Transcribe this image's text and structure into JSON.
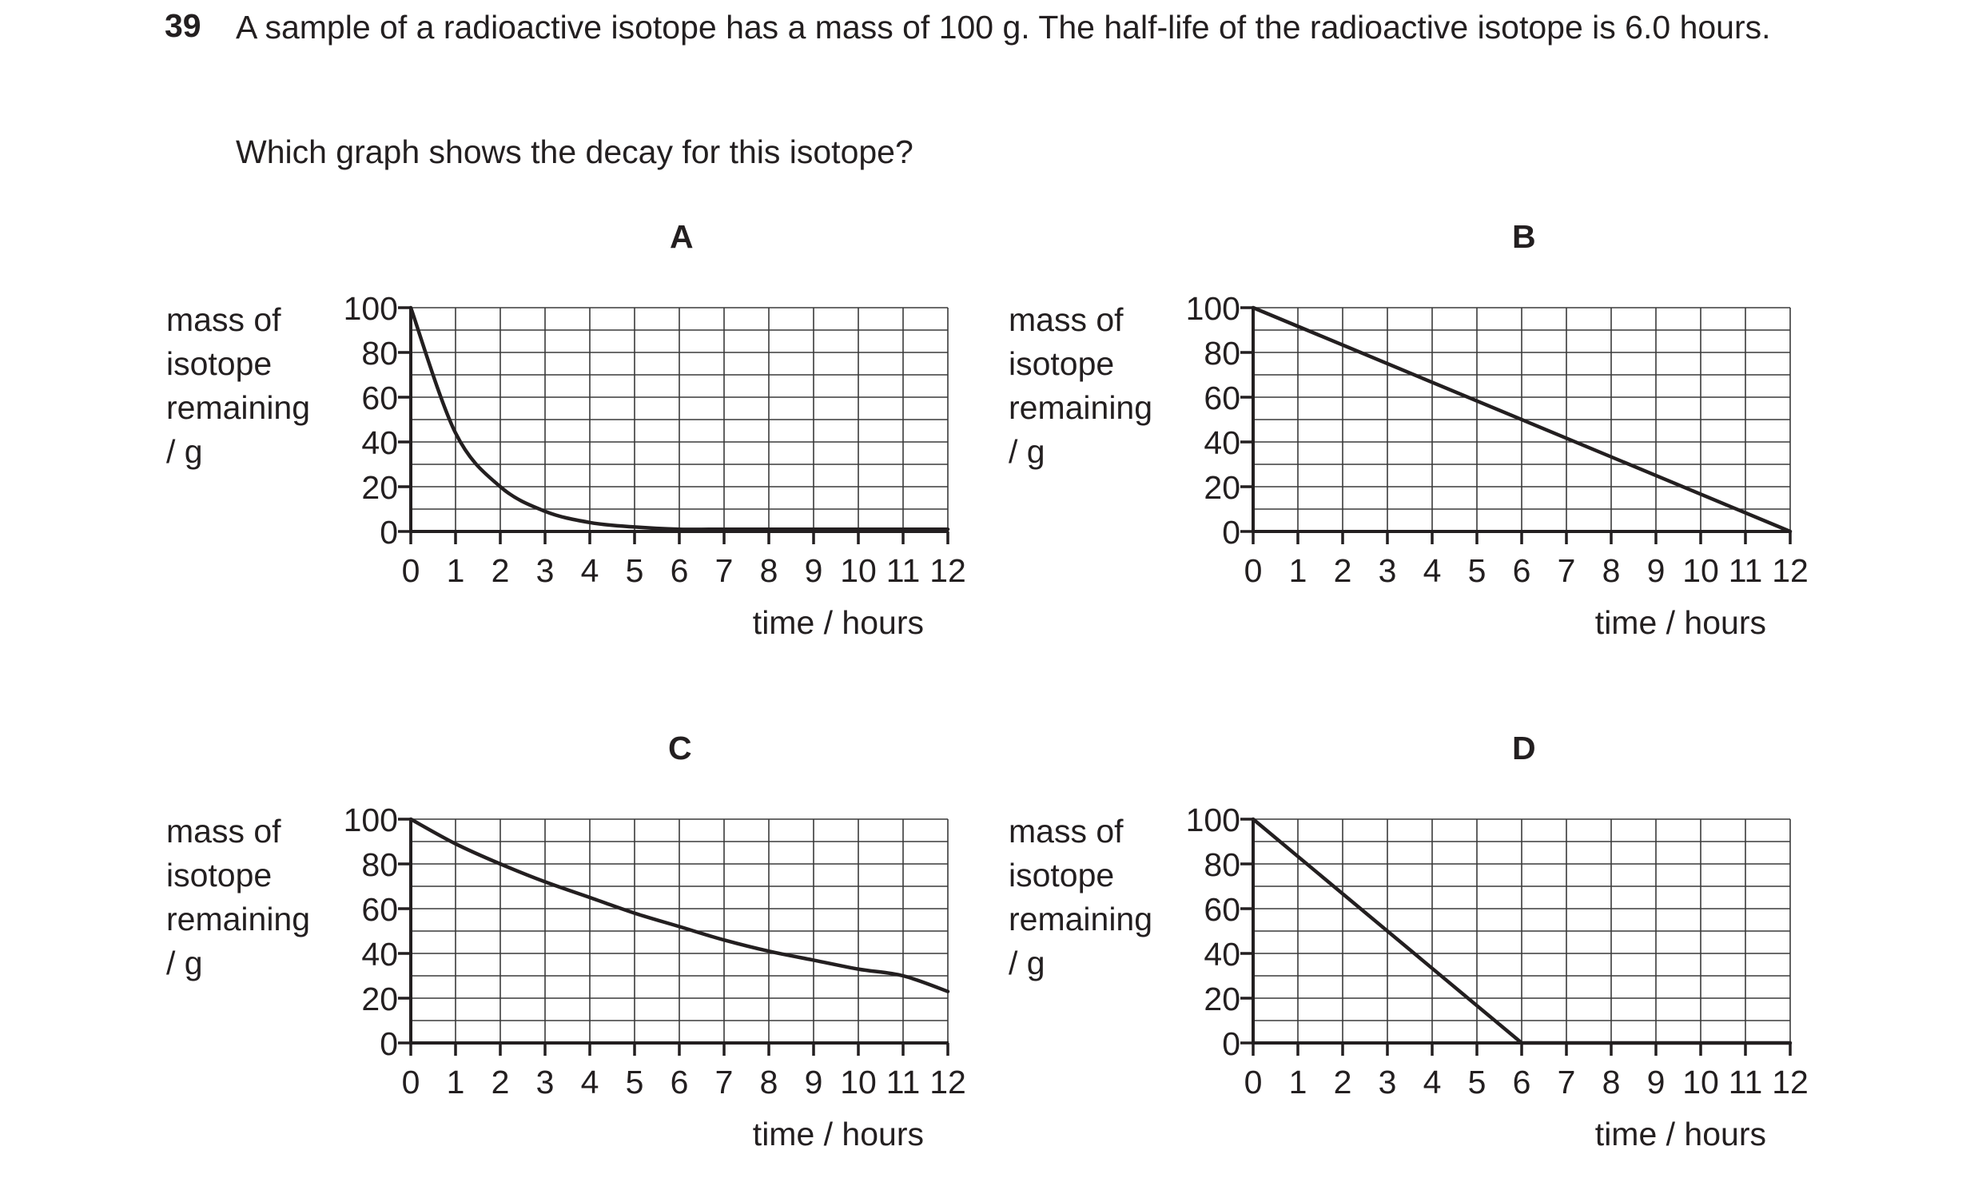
{
  "question": {
    "number": "39",
    "text": "A sample of a radioactive isotope has a mass of 100 g. The half-life of the radioactive isotope is 6.0 hours.",
    "prompt": "Which graph shows the decay for this isotope?"
  },
  "chart_data": [
    {
      "type": "line",
      "option": "A",
      "ylabel": [
        "mass of",
        "isotope",
        "remaining",
        "/ g"
      ],
      "xlabel": "time / hours",
      "xlim": [
        0,
        12
      ],
      "ylim": [
        0,
        100
      ],
      "xticks": [
        0,
        1,
        2,
        3,
        4,
        5,
        6,
        7,
        8,
        9,
        10,
        11,
        12
      ],
      "yticks": [
        0,
        20,
        40,
        60,
        80,
        100
      ],
      "grid": true,
      "x": [
        0,
        1,
        2,
        3,
        4,
        5,
        6,
        7,
        8,
        9,
        10,
        11,
        12
      ],
      "y": [
        100,
        44,
        20,
        9,
        4,
        2,
        1,
        1,
        1,
        1,
        1,
        1,
        1
      ]
    },
    {
      "type": "line",
      "option": "B",
      "ylabel": [
        "mass of",
        "isotope",
        "remaining",
        "/ g"
      ],
      "xlabel": "time / hours",
      "xlim": [
        0,
        12
      ],
      "ylim": [
        0,
        100
      ],
      "xticks": [
        0,
        1,
        2,
        3,
        4,
        5,
        6,
        7,
        8,
        9,
        10,
        11,
        12
      ],
      "yticks": [
        0,
        20,
        40,
        60,
        80,
        100
      ],
      "grid": true,
      "x": [
        0,
        12
      ],
      "y": [
        100,
        0
      ]
    },
    {
      "type": "line",
      "option": "C",
      "ylabel": [
        "mass of",
        "isotope",
        "remaining",
        "/ g"
      ],
      "xlabel": "time / hours",
      "xlim": [
        0,
        12
      ],
      "ylim": [
        0,
        100
      ],
      "xticks": [
        0,
        1,
        2,
        3,
        4,
        5,
        6,
        7,
        8,
        9,
        10,
        11,
        12
      ],
      "yticks": [
        0,
        20,
        40,
        60,
        80,
        100
      ],
      "grid": true,
      "x": [
        0,
        1,
        2,
        3,
        4,
        5,
        6,
        7,
        8,
        9,
        10,
        11,
        12
      ],
      "y": [
        100,
        89,
        80,
        72,
        65,
        58,
        52,
        46,
        41,
        37,
        33,
        30,
        23
      ]
    },
    {
      "type": "line",
      "option": "D",
      "ylabel": [
        "mass of",
        "isotope",
        "remaining",
        "/ g"
      ],
      "xlabel": "time / hours",
      "xlim": [
        0,
        12
      ],
      "ylim": [
        0,
        100
      ],
      "xticks": [
        0,
        1,
        2,
        3,
        4,
        5,
        6,
        7,
        8,
        9,
        10,
        11,
        12
      ],
      "yticks": [
        0,
        20,
        40,
        60,
        80,
        100
      ],
      "grid": true,
      "x": [
        0,
        6,
        12
      ],
      "y": [
        100,
        0,
        0
      ]
    }
  ]
}
